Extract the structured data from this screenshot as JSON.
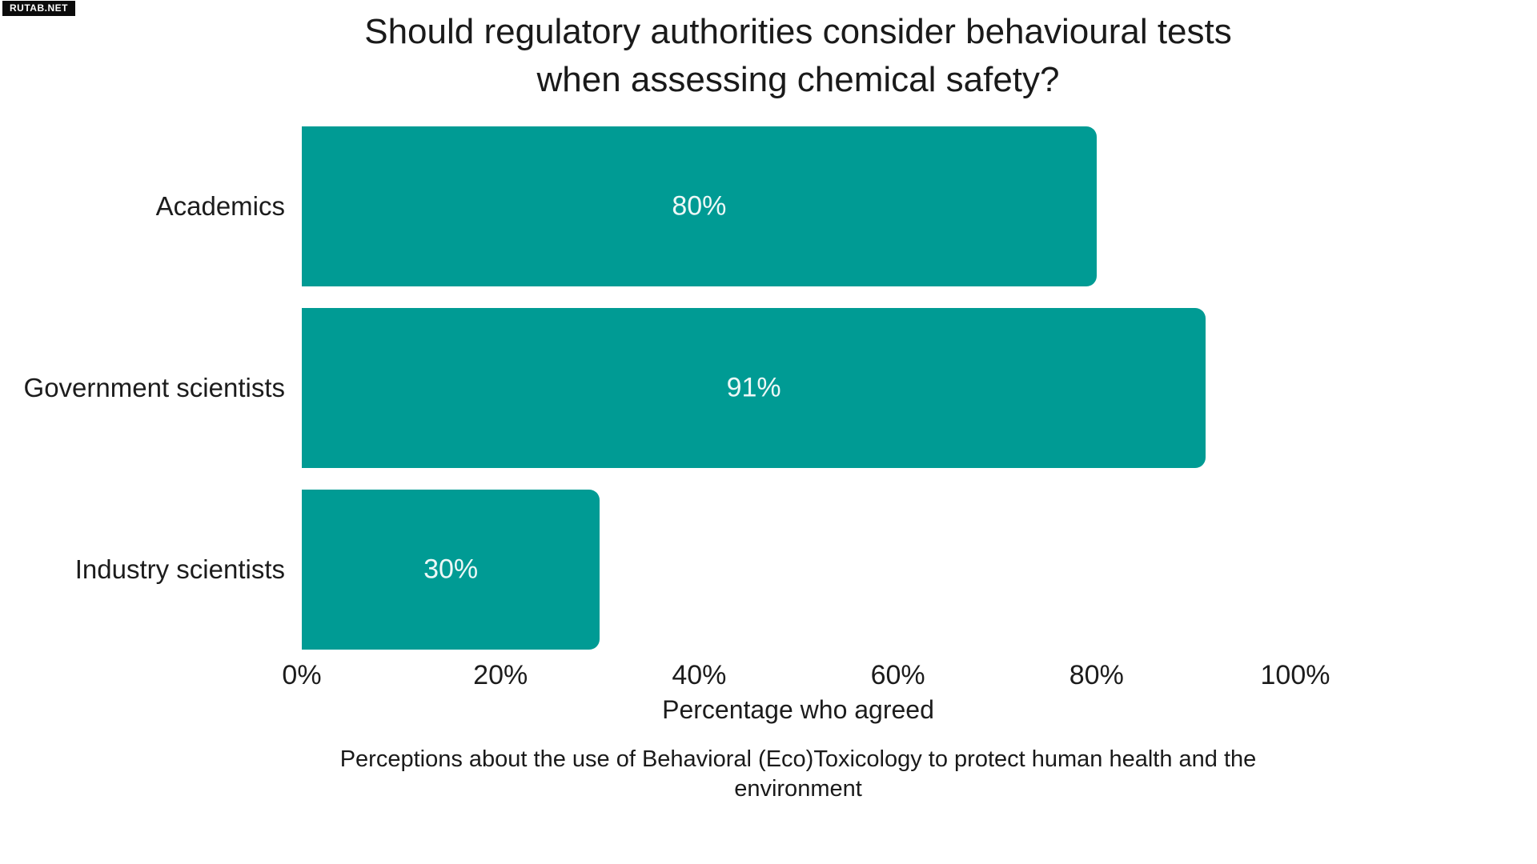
{
  "watermark": {
    "label": "RUTAB.NET"
  },
  "title": {
    "line1": "Should regulatory authorities consider behavioural tests",
    "line2": "when assessing chemical safety?"
  },
  "caption": {
    "line1": "Perceptions about the use of Behavioral (Eco)Toxicology to protect human health and the",
    "line2": "environment"
  },
  "chart_data": {
    "type": "bar",
    "orientation": "horizontal",
    "title": "Should regulatory authorities consider behavioural tests when assessing chemical safety?",
    "categories": [
      "Academics",
      "Government scientists",
      "Industry scientists"
    ],
    "values": [
      80,
      91,
      30
    ],
    "value_labels": [
      "80%",
      "91%",
      "30%"
    ],
    "xlabel": "Percentage who agreed",
    "xlim": [
      0,
      100
    ],
    "x_ticks": [
      0,
      20,
      40,
      60,
      80,
      100
    ],
    "x_tick_labels": [
      "0%",
      "20%",
      "40%",
      "60%",
      "80%",
      "100%"
    ],
    "grid": false,
    "legend": false,
    "bar_color": "#009B94",
    "value_label_color": "#edf8f7",
    "text_color": "#1c1c1c",
    "caption": "Perceptions about the use of Behavioral (Eco)Toxicology to protect human health and the environment"
  }
}
